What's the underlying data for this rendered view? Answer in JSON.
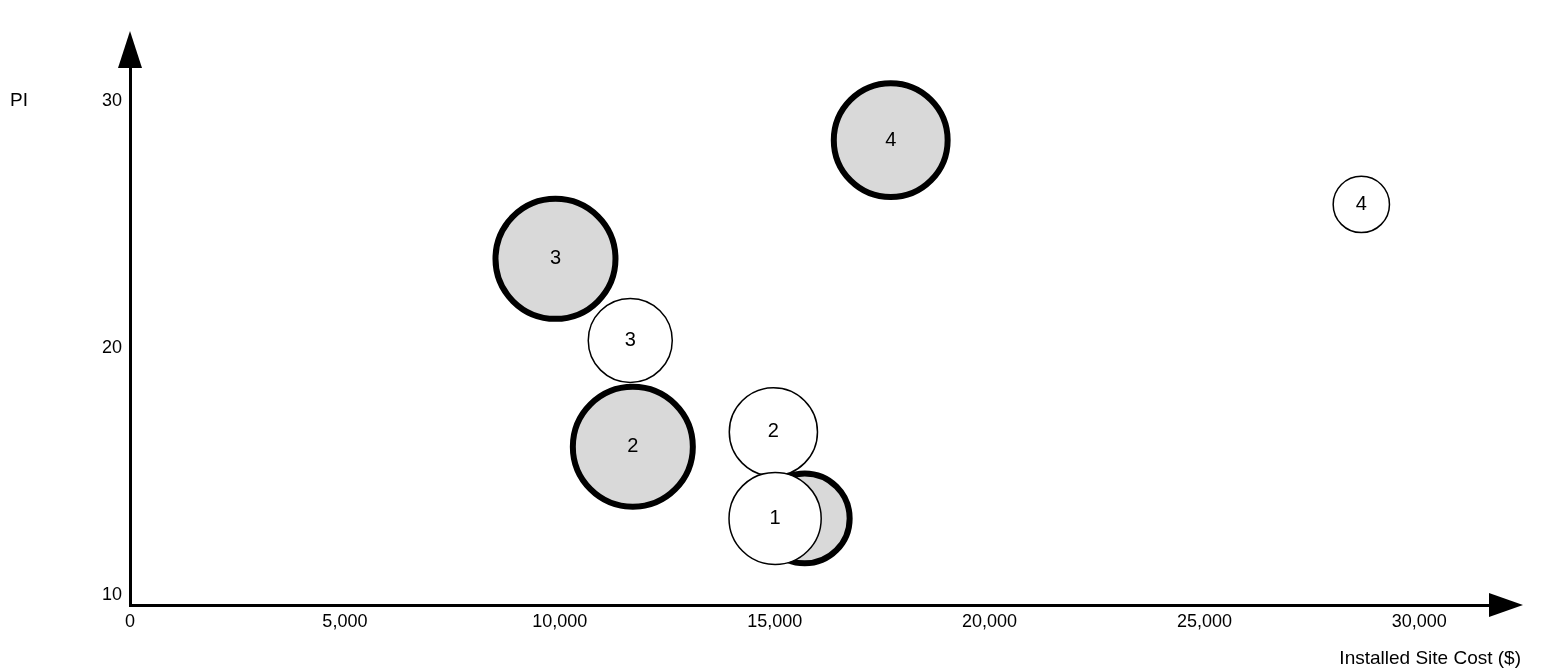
{
  "chart_data": {
    "type": "bubble",
    "xlabel": "Installed Site Cost ($)",
    "ylabel": "PI",
    "xlim": [
      0,
      31900
    ],
    "ylim": [
      9.6,
      31.4
    ],
    "xticks": [
      0,
      {
        "value": 5000,
        "label": "5,000"
      },
      {
        "value": 10000,
        "label": "10,000"
      },
      {
        "value": 15000,
        "label": "15,000"
      },
      {
        "value": 20000,
        "label": "20,000"
      },
      {
        "value": 25000,
        "label": "25,000"
      },
      {
        "value": 30000,
        "label": "30,000"
      }
    ],
    "yticks": [
      10,
      20,
      30
    ],
    "grid": false,
    "legend": false,
    "annotations": [
      {
        "text": "4",
        "x": 17700,
        "y": 28.4
      },
      {
        "text": "3",
        "x": 9900,
        "y": 23.6
      },
      {
        "text": "2",
        "x": 11700,
        "y": 16.0
      },
      {
        "text": "4",
        "x": 28650,
        "y": 25.8
      },
      {
        "text": "3",
        "x": 11640,
        "y": 20.3
      },
      {
        "text": "2",
        "x": 14970,
        "y": 16.6
      },
      {
        "text": "1",
        "x": 15010,
        "y": 13.1
      }
    ],
    "series": [
      {
        "color": "#d9d9d9",
        "x": [
          17700,
          9900,
          11700,
          15700
        ],
        "values": [
          28.4,
          23.6,
          16.0,
          13.1
        ],
        "sizes": [
          0.9,
          1,
          1,
          0.56
        ]
      },
      {
        "color": "#ffffff",
        "x": [
          28650,
          11640,
          14970,
          15010
        ],
        "values": [
          25.8,
          20.3,
          16.6,
          13.1
        ],
        "sizes": [
          0.22,
          0.49,
          0.54,
          0.59
        ]
      }
    ]
  }
}
